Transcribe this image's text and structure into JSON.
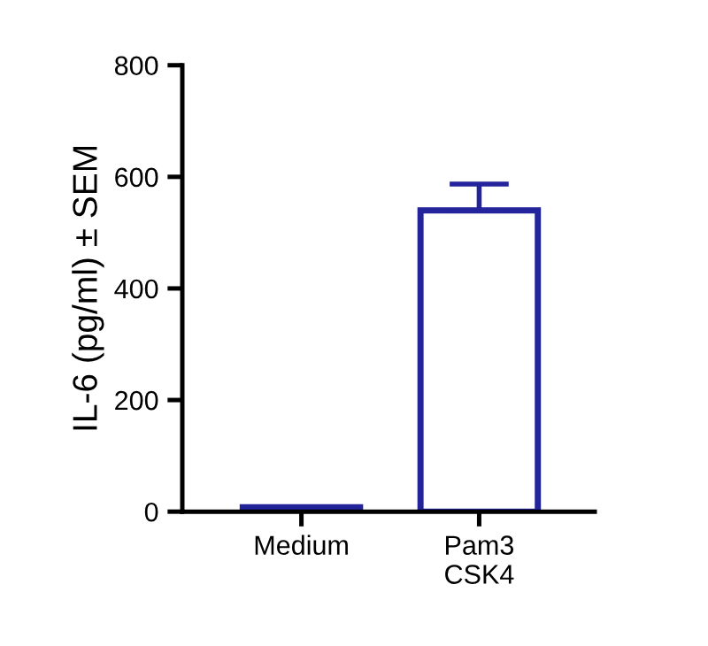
{
  "chart_data": {
    "type": "bar",
    "ylabel": "IL-6 (pg/ml) ± SEM",
    "categories": [
      "Medium",
      "Pam3\nCSK4"
    ],
    "values": [
      8,
      540
    ],
    "errors": [
      null,
      [
        540,
        587
      ]
    ],
    "color": "#23239b",
    "ylim": [
      0,
      800
    ],
    "yticks": [
      0,
      200,
      400,
      600,
      800
    ],
    "grid": false,
    "legend": false
  }
}
